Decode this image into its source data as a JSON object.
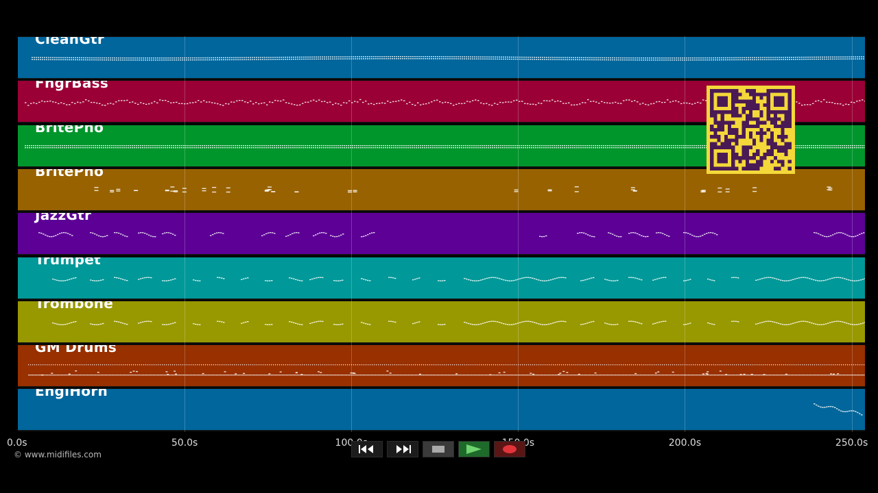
{
  "tracks": [
    {
      "name": "CleanGtr",
      "color": "#00669c"
    },
    {
      "name": "FngrBass",
      "color": "#9a0035"
    },
    {
      "name": "BritePno",
      "color": "#00962c"
    },
    {
      "name": "BritePno",
      "color": "#986200"
    },
    {
      "name": "JazzGtr",
      "color": "#5c0096"
    },
    {
      "name": "Trumpet",
      "color": "#009898"
    },
    {
      "name": "Trombone",
      "color": "#989800"
    },
    {
      "name": "GM Drums",
      "color": "#983000"
    },
    {
      "name": "EnglHorn",
      "color": "#00669c"
    }
  ],
  "timeline": {
    "duration_s": 254,
    "ticks": [
      "0.0s",
      "50.0s",
      "100.0s",
      "150.0s",
      "200.0s",
      "250.0s"
    ],
    "tick_values": [
      0,
      50,
      100,
      150,
      200,
      250
    ]
  },
  "footer": {
    "copyright": "© www.midifiles.com"
  },
  "transport": {
    "rewind": "rewind-icon",
    "fast_forward": "fast-forward-icon",
    "stop": "stop-icon",
    "play": "play-icon",
    "record": "record-icon",
    "play_color": "#6fd46f",
    "record_color": "#e0343a"
  },
  "qr": {
    "fg": "#4a1a55",
    "bg": "#f4d83a"
  }
}
